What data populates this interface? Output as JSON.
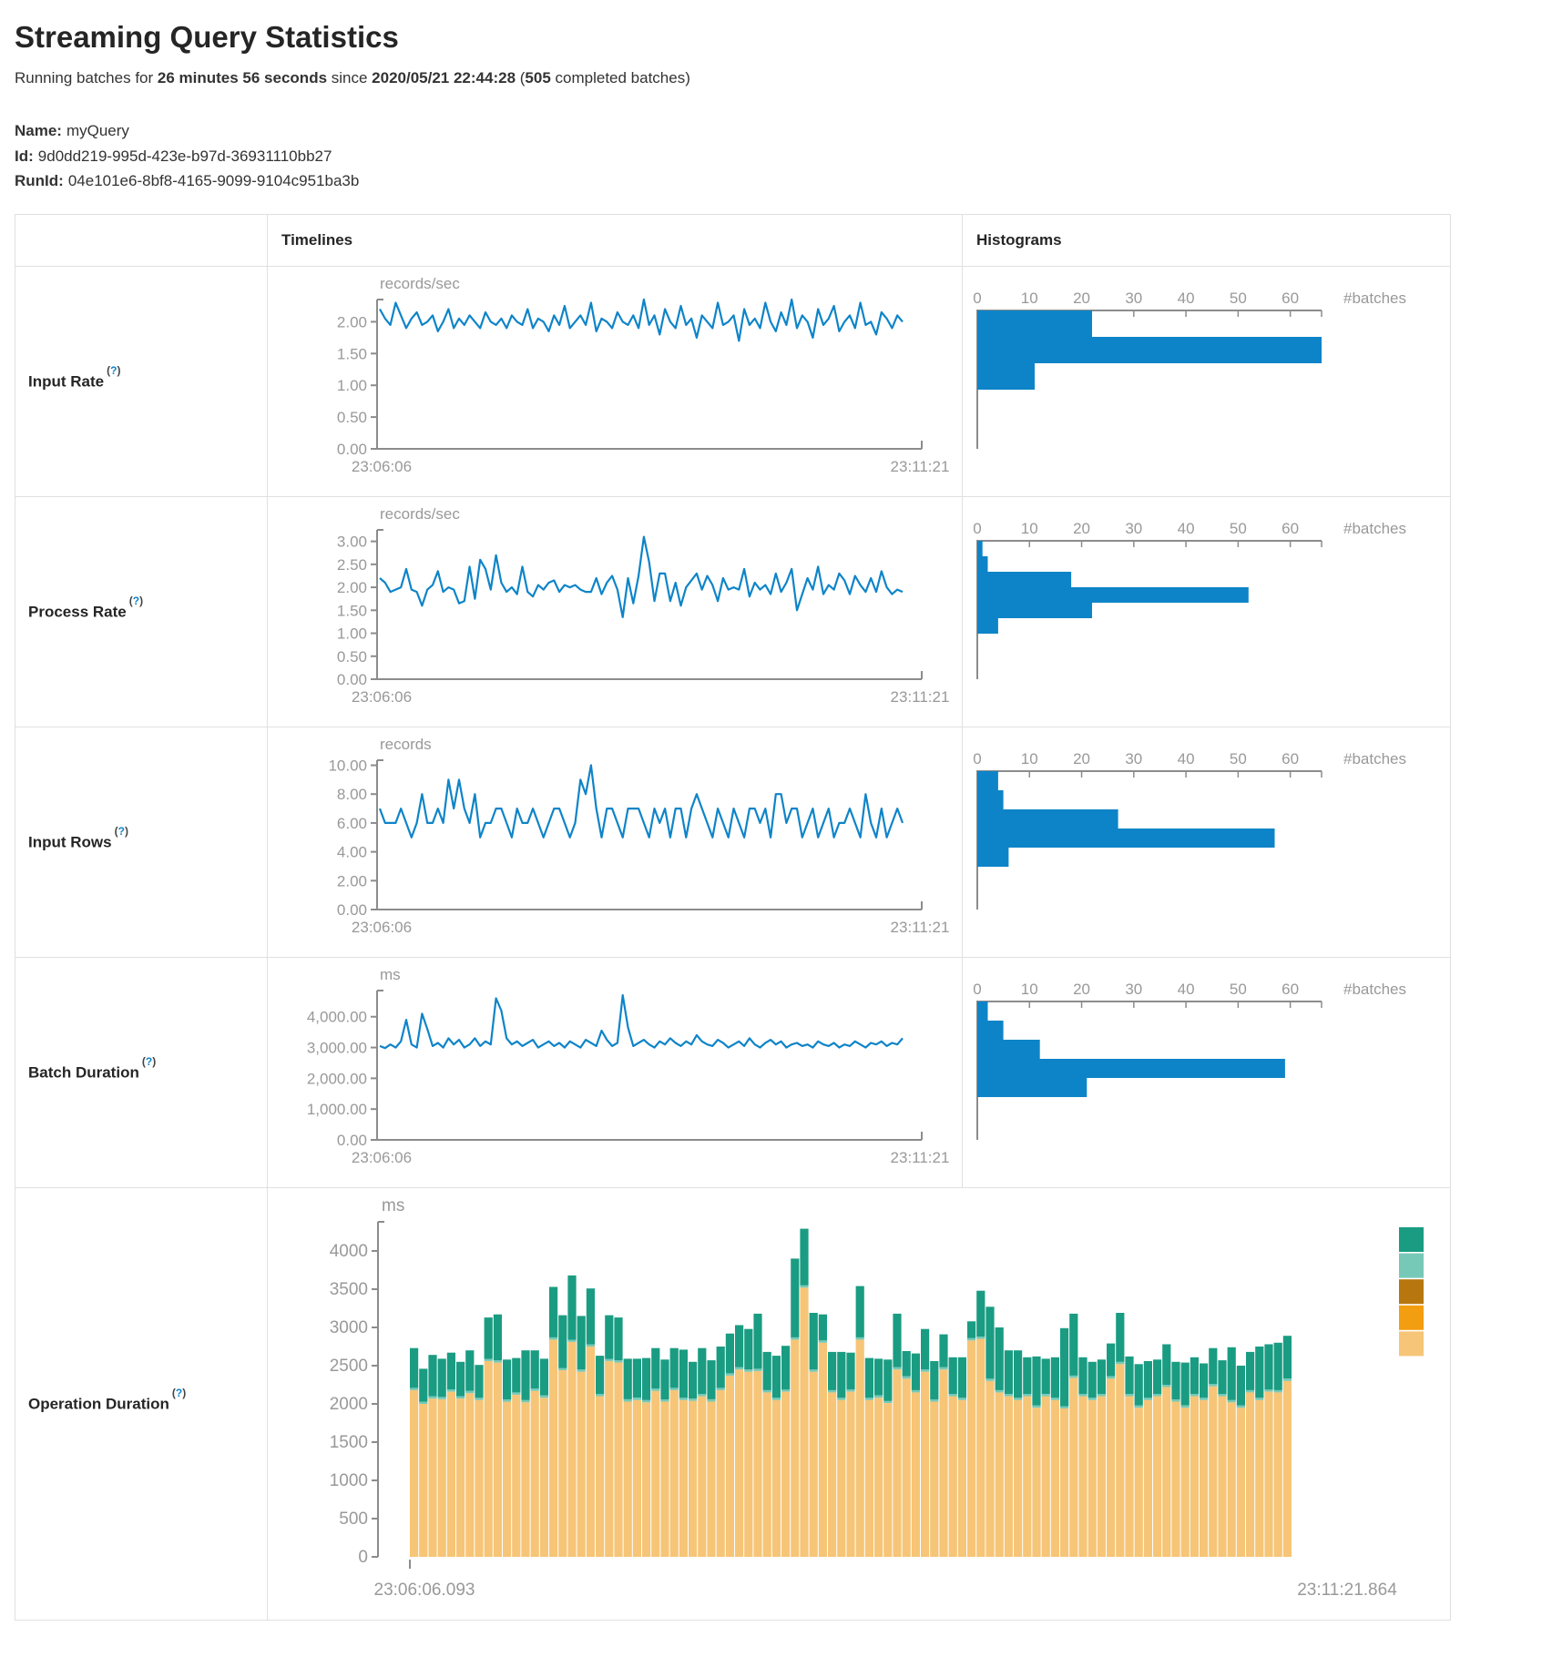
{
  "page": {
    "title": "Streaming Query Statistics",
    "subtitle": {
      "prefix": "Running batches for ",
      "duration": "26 minutes 56 seconds",
      "middle": " since ",
      "start_time": "2020/05/21 22:44:28",
      "open_paren": " (",
      "batches": "505",
      "suffix": " completed batches)"
    },
    "meta": [
      {
        "label": "Name:",
        "value": "myQuery"
      },
      {
        "label": "Id:",
        "value": "9d0dd219-995d-423e-b97d-36931110bb27"
      },
      {
        "label": "RunId:",
        "value": "04e101e6-8bf8-4165-9099-9104c951ba3b"
      }
    ]
  },
  "strings": {
    "help_open": "(",
    "help_mark": "?",
    "help_close": ")"
  },
  "table": {
    "headers": {
      "timelines": "Timelines",
      "histograms": "Histograms"
    },
    "rows": [
      {
        "label": "Input Rate"
      },
      {
        "label": "Process Rate"
      },
      {
        "label": "Input Rows"
      },
      {
        "label": "Batch Duration"
      },
      {
        "label": "Operation Duration"
      }
    ]
  },
  "colors": {
    "accent_blue": "#0E84C8",
    "axis": "#8C8C8C",
    "tick_text": "#999999",
    "border": "#E0E0E0",
    "text": "#333333"
  },
  "chart_data": [
    {
      "id": "input-rate-timeline",
      "type": "line",
      "unit_label": "records/sec",
      "x_start_label": "23:06:06",
      "x_end_label": "23:11:21",
      "ymax": 2.35,
      "yticks": [
        {
          "v": 0,
          "t": "0.00"
        },
        {
          "v": 0.5,
          "t": "0.50"
        },
        {
          "v": 1,
          "t": "1.00"
        },
        {
          "v": 1.5,
          "t": "1.50"
        },
        {
          "v": 2,
          "t": "2.00"
        }
      ],
      "values": [
        2.2,
        2.05,
        1.95,
        2.3,
        2.1,
        1.9,
        2.05,
        2.15,
        1.95,
        2.0,
        2.1,
        1.85,
        2.0,
        2.2,
        1.9,
        2.05,
        1.95,
        2.1,
        2.0,
        1.9,
        2.15,
        2.0,
        1.95,
        2.05,
        1.9,
        2.1,
        2.0,
        1.95,
        2.2,
        1.9,
        2.05,
        2.0,
        1.85,
        2.1,
        1.95,
        2.25,
        1.9,
        2.0,
        2.1,
        1.95,
        2.3,
        1.85,
        2.05,
        2.0,
        1.9,
        2.15,
        2.0,
        1.95,
        2.1,
        1.9,
        2.35,
        1.95,
        2.1,
        1.8,
        2.2,
        2.0,
        1.9,
        2.25,
        1.95,
        2.05,
        1.75,
        2.1,
        2.0,
        1.9,
        2.3,
        1.95,
        2.0,
        2.1,
        1.7,
        2.2,
        1.95,
        2.05,
        1.9,
        2.3,
        2.0,
        1.85,
        2.15,
        1.95,
        2.35,
        1.9,
        2.1,
        2.0,
        1.75,
        2.2,
        1.95,
        2.05,
        2.25,
        1.85,
        2.0,
        2.1,
        1.9,
        2.3,
        1.95,
        2.0,
        1.8,
        2.15,
        2.05,
        1.9,
        2.1,
        2.0
      ]
    },
    {
      "id": "input-rate-histogram",
      "type": "histogram",
      "axis_label": "#batches",
      "xticks": [
        0,
        10,
        20,
        30,
        40,
        50,
        60
      ],
      "xmax": 66,
      "values": [
        22,
        66,
        11
      ]
    },
    {
      "id": "process-rate-timeline",
      "type": "line",
      "unit_label": "records/sec",
      "x_start_label": "23:06:06",
      "x_end_label": "23:11:21",
      "ymax": 3.25,
      "yticks": [
        {
          "v": 0,
          "t": "0.00"
        },
        {
          "v": 0.5,
          "t": "0.50"
        },
        {
          "v": 1,
          "t": "1.00"
        },
        {
          "v": 1.5,
          "t": "1.50"
        },
        {
          "v": 2,
          "t": "2.00"
        },
        {
          "v": 2.5,
          "t": "2.50"
        },
        {
          "v": 3,
          "t": "3.00"
        }
      ],
      "values": [
        2.2,
        2.1,
        1.9,
        1.95,
        2.0,
        2.4,
        1.95,
        1.9,
        1.6,
        1.95,
        2.05,
        2.35,
        1.9,
        2.0,
        1.95,
        1.65,
        1.7,
        2.45,
        1.75,
        2.6,
        2.4,
        1.95,
        2.7,
        2.1,
        1.9,
        2.0,
        1.85,
        2.45,
        1.9,
        1.8,
        2.05,
        1.95,
        2.1,
        2.15,
        1.9,
        2.05,
        2.0,
        2.05,
        1.95,
        1.9,
        1.9,
        2.2,
        1.85,
        2.1,
        2.25,
        1.95,
        1.35,
        2.2,
        1.65,
        2.25,
        3.1,
        2.55,
        1.7,
        2.3,
        2.3,
        1.7,
        2.1,
        1.6,
        2.0,
        2.15,
        2.3,
        1.95,
        2.25,
        2.05,
        1.7,
        2.2,
        1.95,
        2.0,
        1.95,
        2.4,
        1.8,
        2.1,
        1.95,
        2.05,
        1.85,
        2.3,
        1.9,
        2.1,
        2.4,
        1.5,
        1.85,
        2.2,
        1.95,
        2.45,
        1.85,
        2.05,
        1.95,
        2.3,
        2.15,
        1.85,
        2.25,
        2.05,
        1.9,
        2.2,
        1.9,
        2.35,
        2.0,
        1.85,
        1.95,
        1.9
      ]
    },
    {
      "id": "process-rate-histogram",
      "type": "histogram",
      "axis_label": "#batches",
      "xticks": [
        0,
        10,
        20,
        30,
        40,
        50,
        60
      ],
      "xmax": 66,
      "values": [
        1,
        2,
        18,
        52,
        22,
        4
      ]
    },
    {
      "id": "input-rows-timeline",
      "type": "line",
      "unit_label": "records",
      "x_start_label": "23:06:06",
      "x_end_label": "23:11:21",
      "ymax": 10.35,
      "yticks": [
        {
          "v": 0,
          "t": "0.00"
        },
        {
          "v": 2,
          "t": "2.00"
        },
        {
          "v": 4,
          "t": "4.00"
        },
        {
          "v": 6,
          "t": "6.00"
        },
        {
          "v": 8,
          "t": "8.00"
        },
        {
          "v": 10,
          "t": "10.00"
        }
      ],
      "values": [
        7,
        6,
        6,
        6,
        7,
        6,
        5,
        6,
        8,
        6,
        6,
        7,
        6,
        9,
        7,
        9,
        7,
        6,
        8,
        5,
        6,
        6,
        7,
        7,
        6,
        5,
        7,
        6,
        6,
        7,
        6,
        5,
        6,
        7,
        7,
        6,
        5,
        6,
        9,
        8,
        10,
        7,
        5,
        7,
        7,
        6,
        5,
        7,
        7,
        7,
        6,
        5,
        7,
        6,
        7,
        5,
        7,
        7,
        5,
        7,
        8,
        7,
        6,
        5,
        7,
        6,
        5,
        7,
        6,
        5,
        7,
        7,
        6,
        7,
        5,
        8,
        8,
        6,
        7,
        7,
        5,
        6,
        7,
        5,
        6,
        7,
        5,
        6,
        6,
        7,
        6,
        5,
        8,
        6,
        5,
        7,
        5,
        6,
        7,
        6
      ]
    },
    {
      "id": "input-rows-histogram",
      "type": "histogram",
      "axis_label": "#batches",
      "xticks": [
        0,
        10,
        20,
        30,
        40,
        50,
        60
      ],
      "xmax": 66,
      "values": [
        4,
        5,
        27,
        57,
        6
      ]
    },
    {
      "id": "batch-duration-timeline",
      "type": "line",
      "unit_label": "ms",
      "x_start_label": "23:06:06",
      "x_end_label": "23:11:21",
      "ymax": 4850,
      "yticks": [
        {
          "v": 0,
          "t": "0.00"
        },
        {
          "v": 1000,
          "t": "1,000.00"
        },
        {
          "v": 2000,
          "t": "2,000.00"
        },
        {
          "v": 3000,
          "t": "3,000.00"
        },
        {
          "v": 4000,
          "t": "4,000.00"
        }
      ],
      "values": [
        3050,
        2980,
        3100,
        3000,
        3200,
        3900,
        3100,
        3000,
        4100,
        3600,
        3050,
        3150,
        3000,
        3300,
        3100,
        3250,
        3000,
        3100,
        3300,
        3050,
        3200,
        3100,
        4600,
        4200,
        3300,
        3100,
        3200,
        3050,
        3150,
        3250,
        3000,
        3100,
        3200,
        3050,
        3150,
        3000,
        3200,
        3100,
        3000,
        3250,
        3150,
        3050,
        3550,
        3250,
        3050,
        3150,
        4700,
        3650,
        3050,
        3150,
        3250,
        3100,
        3000,
        3200,
        3100,
        3300,
        3150,
        3050,
        3200,
        3100,
        3400,
        3200,
        3100,
        3050,
        3250,
        3150,
        3000,
        3100,
        3200,
        3050,
        3300,
        3100,
        3000,
        3150,
        3250,
        3100,
        3200,
        3000,
        3100,
        3150,
        3050,
        3100,
        3000,
        3200,
        3100,
        3050,
        3150,
        3000,
        3100,
        3050,
        3200,
        3100,
        3000,
        3150,
        3100,
        3200,
        3050,
        3150,
        3100,
        3300
      ]
    },
    {
      "id": "batch-duration-histogram",
      "type": "histogram",
      "axis_label": "#batches",
      "xticks": [
        0,
        10,
        20,
        30,
        40,
        50,
        60
      ],
      "xmax": 66,
      "values": [
        2,
        5,
        12,
        59,
        21
      ]
    },
    {
      "id": "operation-duration",
      "type": "stacked-bar",
      "unit_label": "ms",
      "x_start_label": "23:06:06.093",
      "x_end_label": "23:11:21.864",
      "ymax": 4400,
      "yticks": [
        {
          "v": 4000,
          "t": "4000"
        },
        {
          "v": 3500,
          "t": "3500"
        },
        {
          "v": 3000,
          "t": "3000"
        },
        {
          "v": 2500,
          "t": "2500"
        },
        {
          "v": 2000,
          "t": "2000"
        },
        {
          "v": 1500,
          "t": "1500"
        },
        {
          "v": 1000,
          "t": "1000"
        },
        {
          "v": 500,
          "t": "500"
        },
        {
          "v": 0,
          "t": "0"
        }
      ],
      "series_colors": [
        "#F6C577",
        "#76C9B6",
        "#1A9C82"
      ],
      "legend_colors": [
        "#1A9C82",
        "#76C9B6",
        "#B8770E",
        "#F39D11",
        "#F6C577"
      ],
      "bars": [
        [
          2180,
          30,
          520
        ],
        [
          2000,
          30,
          430
        ],
        [
          2070,
          30,
          540
        ],
        [
          2060,
          30,
          500
        ],
        [
          2160,
          30,
          480
        ],
        [
          2070,
          30,
          450
        ],
        [
          2140,
          30,
          530
        ],
        [
          2050,
          30,
          430
        ],
        [
          2560,
          30,
          540
        ],
        [
          2540,
          30,
          600
        ],
        [
          2030,
          30,
          520
        ],
        [
          2120,
          30,
          450
        ],
        [
          2020,
          30,
          650
        ],
        [
          2170,
          30,
          500
        ],
        [
          2080,
          30,
          480
        ],
        [
          2840,
          30,
          660
        ],
        [
          2440,
          30,
          690
        ],
        [
          2810,
          30,
          840
        ],
        [
          2420,
          30,
          700
        ],
        [
          2750,
          30,
          730
        ],
        [
          2100,
          30,
          500
        ],
        [
          2560,
          30,
          570
        ],
        [
          2540,
          30,
          560
        ],
        [
          2030,
          30,
          530
        ],
        [
          2050,
          30,
          510
        ],
        [
          2020,
          30,
          550
        ],
        [
          2170,
          30,
          530
        ],
        [
          2030,
          30,
          520
        ],
        [
          2180,
          30,
          520
        ],
        [
          2050,
          30,
          630
        ],
        [
          2040,
          30,
          480
        ],
        [
          2100,
          30,
          600
        ],
        [
          2030,
          30,
          510
        ],
        [
          2180,
          30,
          540
        ],
        [
          2370,
          30,
          520
        ],
        [
          2450,
          30,
          550
        ],
        [
          2420,
          30,
          530
        ],
        [
          2430,
          30,
          720
        ],
        [
          2150,
          30,
          500
        ],
        [
          2050,
          30,
          550
        ],
        [
          2160,
          30,
          570
        ],
        [
          2840,
          30,
          1030
        ],
        [
          3520,
          30,
          740
        ],
        [
          2420,
          30,
          740
        ],
        [
          2800,
          30,
          340
        ],
        [
          2150,
          30,
          500
        ],
        [
          2050,
          30,
          600
        ],
        [
          2160,
          30,
          480
        ],
        [
          2840,
          30,
          670
        ],
        [
          2050,
          30,
          520
        ],
        [
          2080,
          30,
          480
        ],
        [
          2010,
          30,
          540
        ],
        [
          2450,
          30,
          700
        ],
        [
          2330,
          30,
          330
        ],
        [
          2150,
          30,
          480
        ],
        [
          2420,
          30,
          530
        ],
        [
          2030,
          30,
          500
        ],
        [
          2450,
          30,
          430
        ],
        [
          2100,
          30,
          480
        ],
        [
          2050,
          30,
          530
        ],
        [
          2830,
          30,
          220
        ],
        [
          2850,
          30,
          600
        ],
        [
          2300,
          30,
          940
        ],
        [
          2150,
          30,
          820
        ],
        [
          2100,
          30,
          570
        ],
        [
          2050,
          30,
          620
        ],
        [
          2100,
          30,
          480
        ],
        [
          1950,
          30,
          640
        ],
        [
          2100,
          30,
          460
        ],
        [
          2050,
          30,
          530
        ],
        [
          1940,
          30,
          1020
        ],
        [
          2340,
          30,
          810
        ],
        [
          2100,
          30,
          480
        ],
        [
          2050,
          30,
          470
        ],
        [
          2100,
          30,
          450
        ],
        [
          2330,
          30,
          430
        ],
        [
          2520,
          30,
          640
        ],
        [
          2100,
          30,
          490
        ],
        [
          1950,
          30,
          540
        ],
        [
          2050,
          30,
          480
        ],
        [
          2100,
          30,
          450
        ],
        [
          2220,
          30,
          530
        ],
        [
          2030,
          30,
          490
        ],
        [
          1950,
          30,
          560
        ],
        [
          2100,
          30,
          480
        ],
        [
          2050,
          30,
          450
        ],
        [
          2230,
          30,
          470
        ],
        [
          2100,
          30,
          440
        ],
        [
          2020,
          30,
          690
        ],
        [
          1950,
          30,
          520
        ],
        [
          2150,
          30,
          500
        ],
        [
          2050,
          30,
          670
        ],
        [
          2160,
          30,
          590
        ],
        [
          2150,
          30,
          620
        ],
        [
          2300,
          30,
          560
        ]
      ]
    }
  ]
}
